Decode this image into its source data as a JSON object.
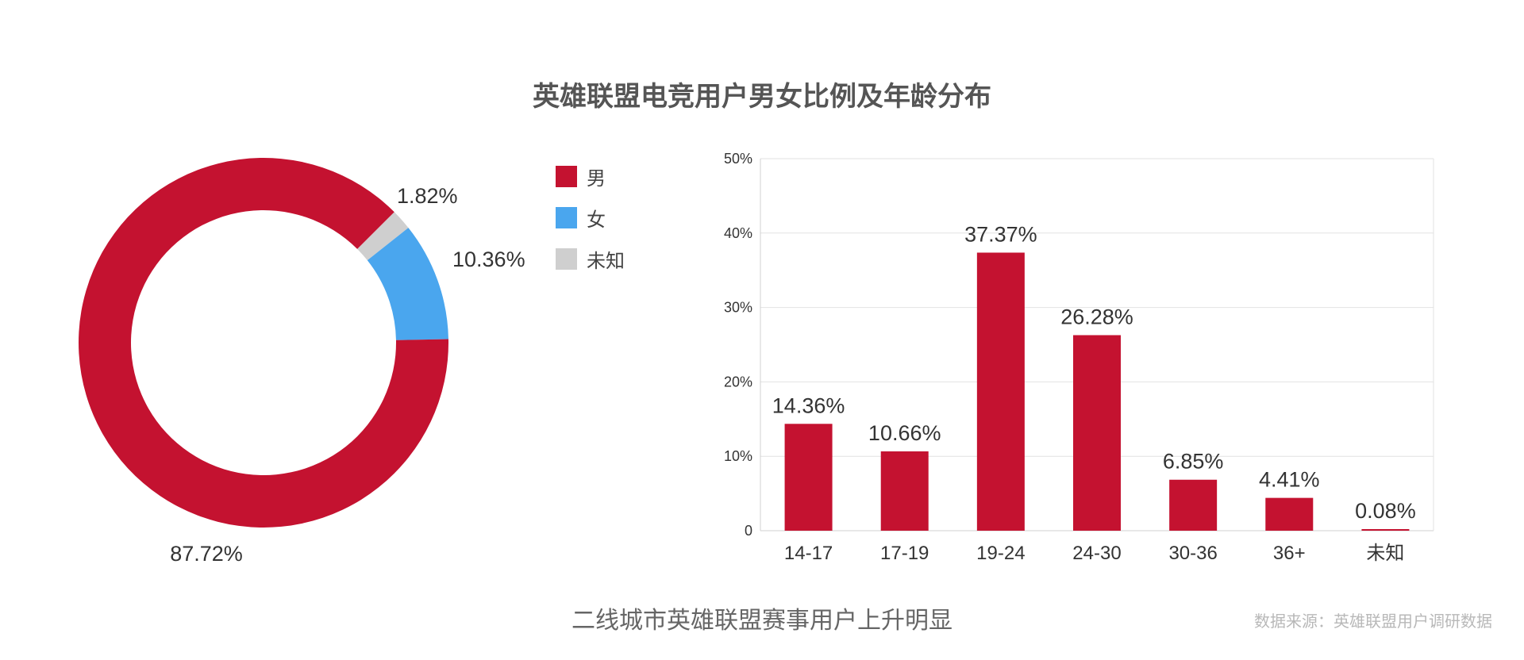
{
  "title": "英雄联盟电竞用户男女比例及年龄分布",
  "caption": "二线城市英雄联盟赛事用户上升明显",
  "source": "数据来源：英雄联盟用户调研数据",
  "chart_data": [
    {
      "type": "pie",
      "subtype": "donut",
      "categories": [
        "男",
        "女",
        "未知"
      ],
      "values": [
        87.72,
        10.36,
        1.82
      ],
      "value_labels": [
        "87.72%",
        "10.36%",
        "1.82%"
      ],
      "colors": [
        "#c41230",
        "#4aa6ee",
        "#cfcfcf"
      ],
      "legend": "right"
    },
    {
      "type": "bar",
      "categories": [
        "14-17",
        "17-19",
        "19-24",
        "24-30",
        "30-36",
        "36+",
        "未知"
      ],
      "values": [
        14.36,
        10.66,
        37.37,
        26.28,
        6.85,
        4.41,
        0.08
      ],
      "value_labels": [
        "14.36%",
        "10.66%",
        "37.37%",
        "26.28%",
        "6.85%",
        "4.41%",
        "0.08%"
      ],
      "ylim": [
        0,
        50
      ],
      "yticks": [
        "0",
        "10%",
        "20%",
        "30%",
        "40%",
        "50%"
      ],
      "grid": true,
      "color": "#c41230"
    }
  ]
}
